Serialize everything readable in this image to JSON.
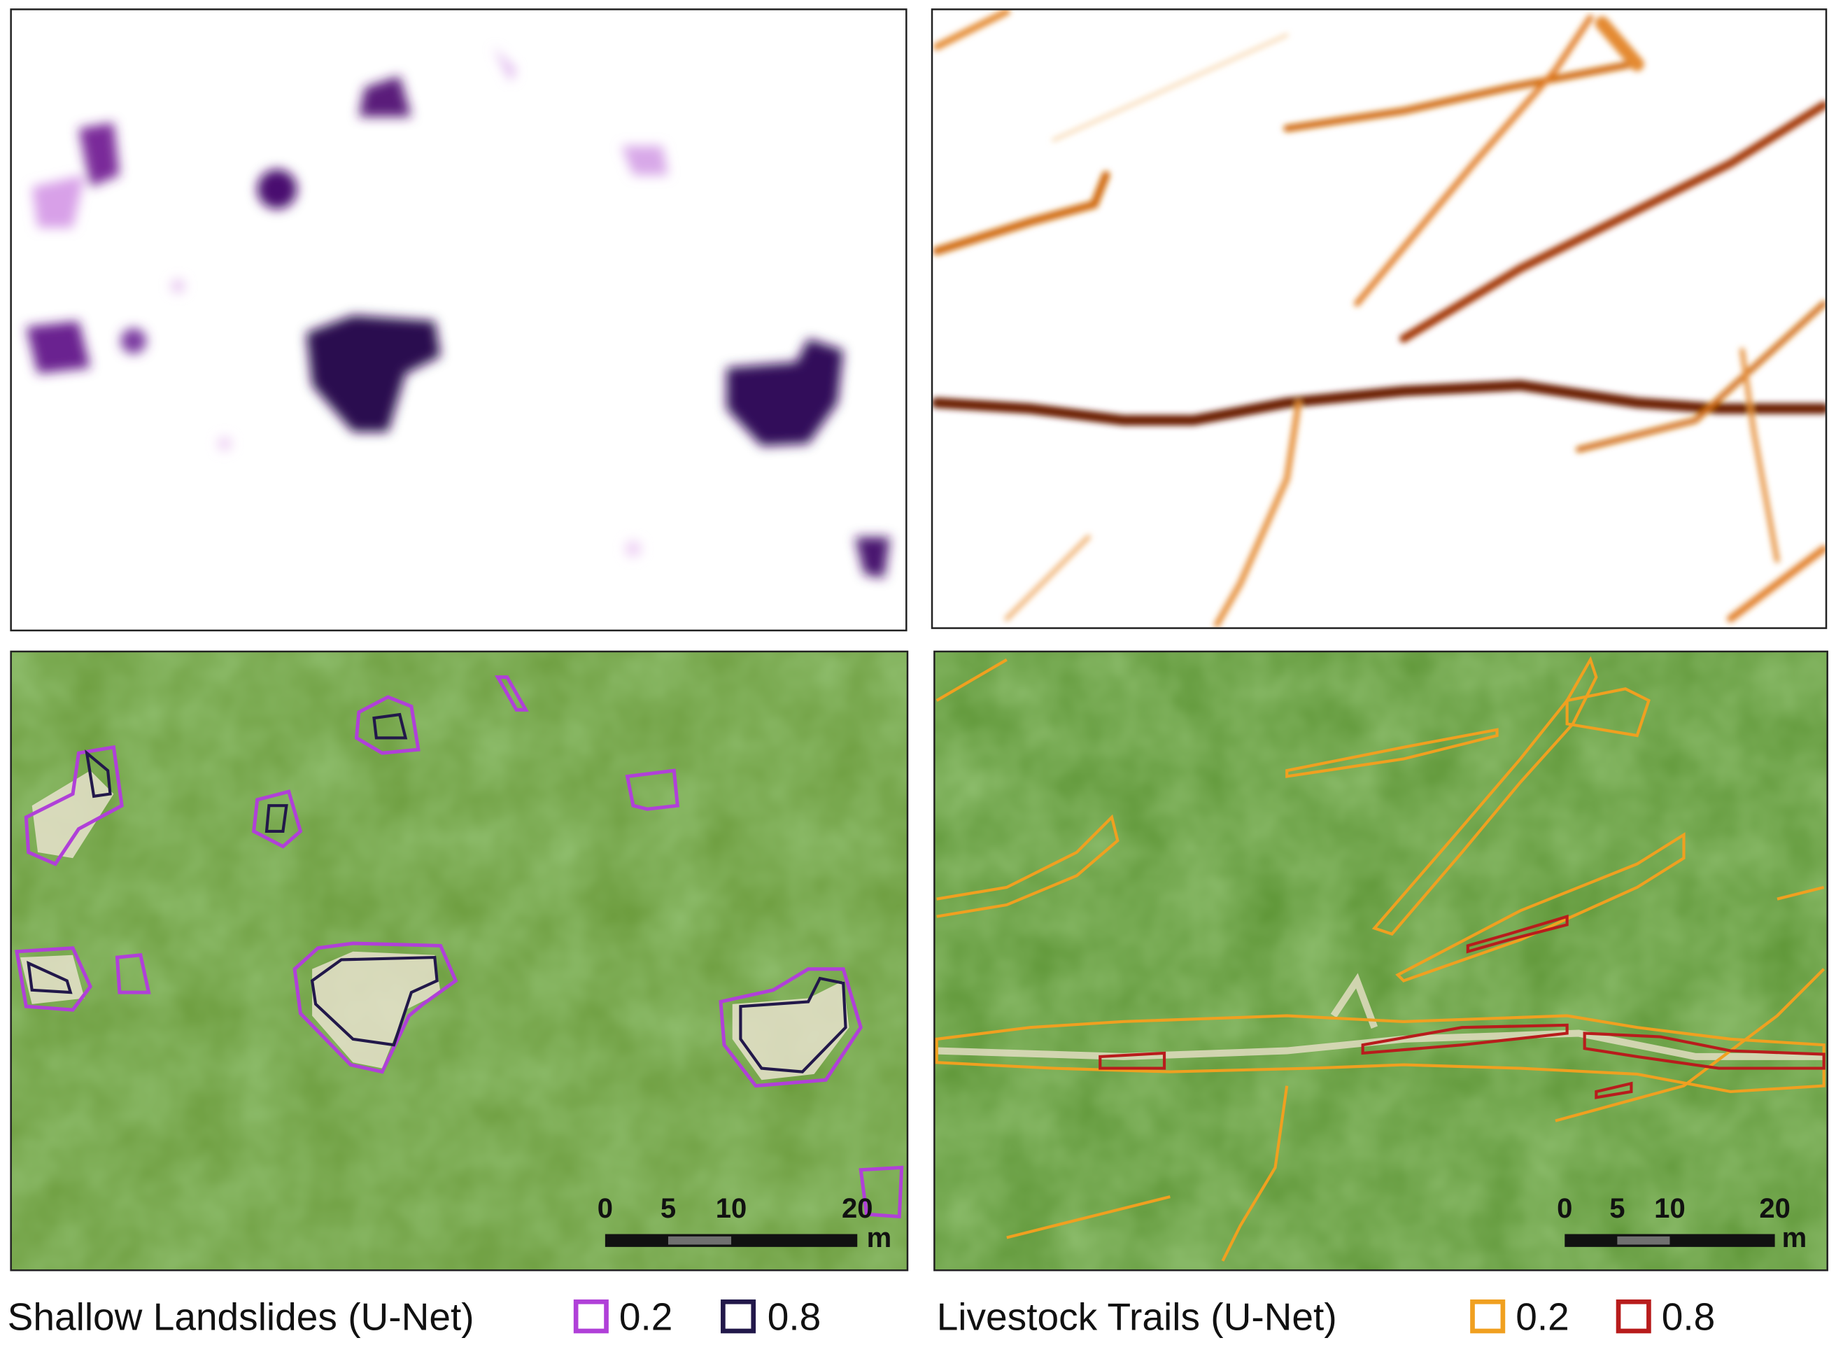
{
  "scale_bars": {
    "landslides": {
      "ticks": [
        "0",
        "5",
        "10",
        "20"
      ],
      "unit": "m"
    },
    "trails": {
      "ticks": [
        "0",
        "5",
        "10",
        "20"
      ],
      "unit": "m"
    }
  },
  "legend": {
    "landslides": {
      "title": "Shallow Landslides (U-Net)",
      "levels": [
        "0.2",
        "0.8"
      ]
    },
    "trails": {
      "title": "Livestock Trails (U-Net)",
      "levels": [
        "0.2",
        "0.8"
      ]
    }
  }
}
